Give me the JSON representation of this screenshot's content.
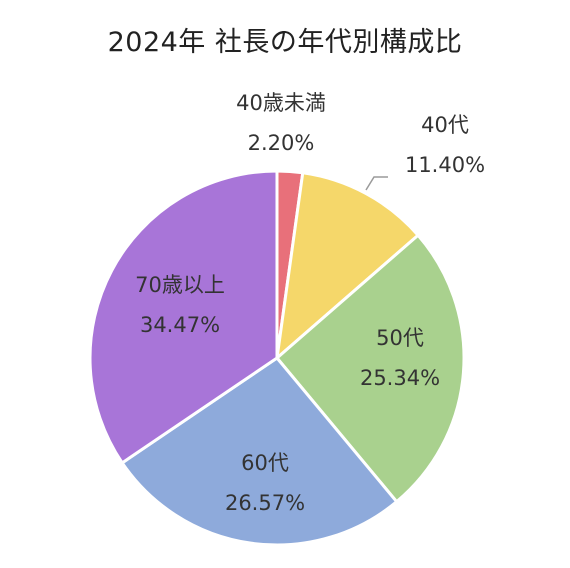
{
  "chart_data": {
    "type": "pie",
    "title": "2024年 社長の年代別構成比",
    "slices": [
      {
        "label": "40歳未満",
        "value": 2.2,
        "value_text": "2.20%",
        "color": "#e8707a"
      },
      {
        "label": "40代",
        "value": 11.4,
        "value_text": "11.40%",
        "color": "#f5d76a"
      },
      {
        "label": "50代",
        "value": 25.34,
        "value_text": "25.34%",
        "color": "#a9d18e"
      },
      {
        "label": "60代",
        "value": 26.57,
        "value_text": "26.57%",
        "color": "#8eaadb"
      },
      {
        "label": "70歳以上",
        "value": 34.47,
        "value_text": "34.47%",
        "color": "#a875d8"
      }
    ],
    "start_angle": "12 o'clock",
    "direction": "clockwise",
    "legend": "none",
    "data_labels": "category name and percentage"
  }
}
